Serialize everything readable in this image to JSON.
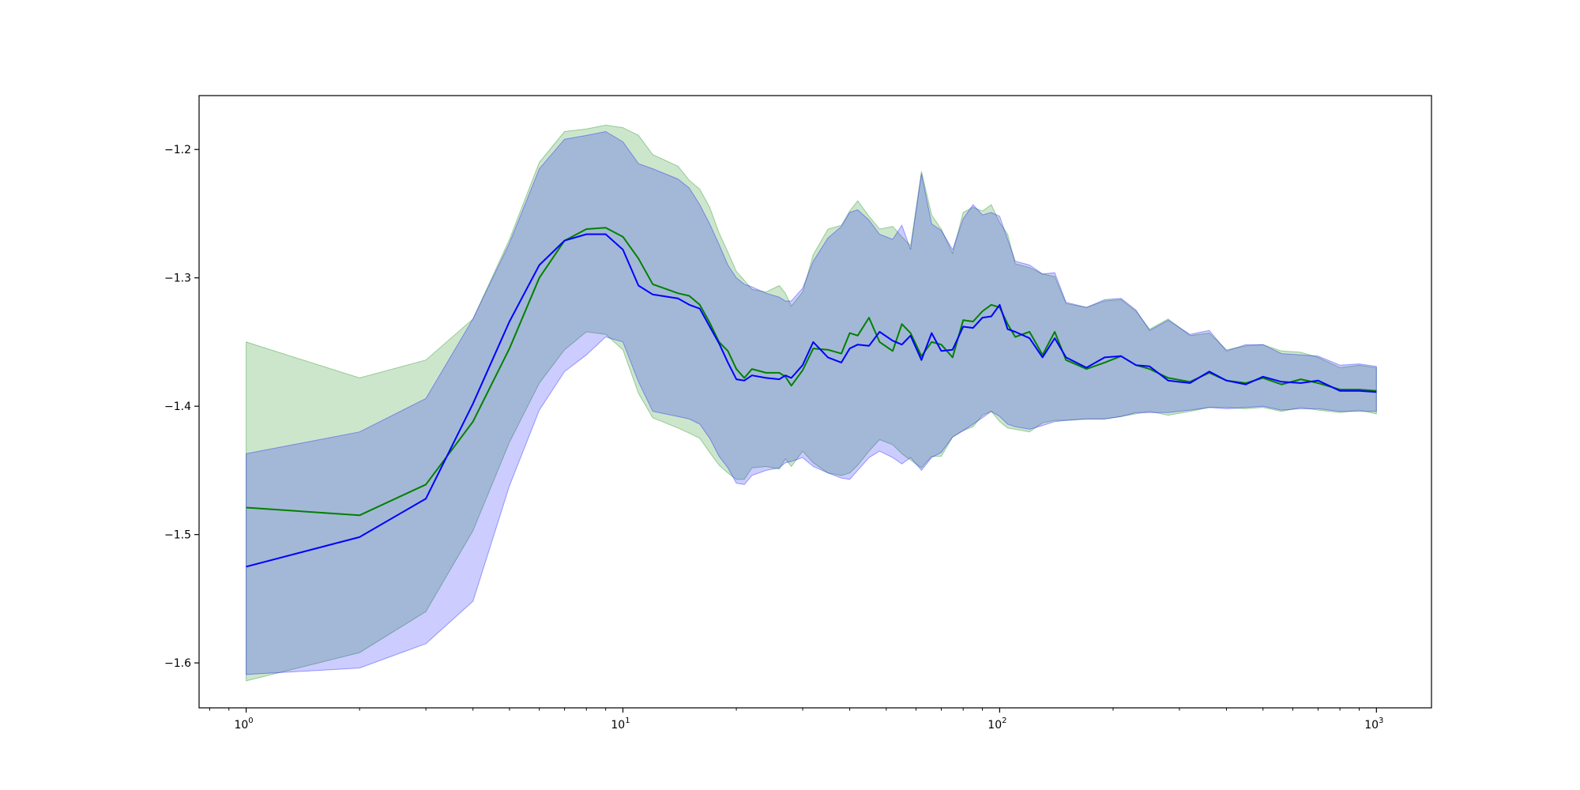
{
  "chart_data": {
    "type": "line",
    "title": "",
    "xlabel": "",
    "ylabel": "",
    "xscale": "log",
    "xlim": [
      0.75,
      1400
    ],
    "ylim": [
      -1.635,
      -1.158
    ],
    "grid": false,
    "x_ticks": [
      {
        "base": "10",
        "exp": "0",
        "value": 1
      },
      {
        "base": "10",
        "exp": "1",
        "value": 10
      },
      {
        "base": "10",
        "exp": "2",
        "value": 100
      },
      {
        "base": "10",
        "exp": "3",
        "value": 1000
      }
    ],
    "y_ticks": [
      {
        "label": "−1.2",
        "value": -1.2
      },
      {
        "label": "−1.3",
        "value": -1.3
      },
      {
        "label": "−1.4",
        "value": -1.4
      },
      {
        "label": "−1.5",
        "value": -1.5
      },
      {
        "label": "−1.6",
        "value": -1.6
      }
    ],
    "series": [
      {
        "color": "#008000",
        "band_color": "#008000",
        "band_opacity": 0.2,
        "x": [
          1,
          2,
          3,
          4,
          5,
          6,
          7,
          8,
          9,
          10,
          11,
          12,
          14,
          15,
          16,
          17,
          18,
          19,
          20,
          21,
          22,
          24,
          26,
          27,
          28,
          30,
          32,
          35,
          38,
          40,
          42,
          45,
          48,
          52,
          55,
          58,
          62,
          66,
          70,
          75,
          80,
          85,
          90,
          95,
          100,
          105,
          110,
          120,
          130,
          140,
          150,
          170,
          190,
          210,
          230,
          250,
          280,
          320,
          360,
          400,
          450,
          500,
          560,
          630,
          700,
          800,
          900,
          1000
        ],
        "mean": [
          -1.479,
          -1.485,
          -1.461,
          -1.412,
          -1.355,
          -1.3,
          -1.271,
          -1.262,
          -1.261,
          -1.268,
          -1.285,
          -1.305,
          -1.312,
          -1.314,
          -1.321,
          -1.335,
          -1.35,
          -1.357,
          -1.371,
          -1.378,
          -1.371,
          -1.374,
          -1.374,
          -1.377,
          -1.384,
          -1.372,
          -1.355,
          -1.356,
          -1.359,
          -1.343,
          -1.345,
          -1.331,
          -1.35,
          -1.357,
          -1.336,
          -1.343,
          -1.361,
          -1.35,
          -1.352,
          -1.362,
          -1.333,
          -1.334,
          -1.326,
          -1.321,
          -1.323,
          -1.336,
          -1.346,
          -1.342,
          -1.36,
          -1.342,
          -1.364,
          -1.371,
          -1.366,
          -1.361,
          -1.368,
          -1.371,
          -1.378,
          -1.381,
          -1.374,
          -1.38,
          -1.382,
          -1.378,
          -1.383,
          -1.379,
          -1.382,
          -1.387,
          -1.387,
          -1.388
        ],
        "upper": [
          -1.35,
          -1.378,
          -1.364,
          -1.332,
          -1.27,
          -1.21,
          -1.186,
          -1.184,
          -1.181,
          -1.183,
          -1.189,
          -1.204,
          -1.213,
          -1.224,
          -1.231,
          -1.245,
          -1.265,
          -1.28,
          -1.295,
          -1.302,
          -1.309,
          -1.311,
          -1.306,
          -1.312,
          -1.322,
          -1.311,
          -1.282,
          -1.262,
          -1.259,
          -1.248,
          -1.24,
          -1.252,
          -1.262,
          -1.26,
          -1.268,
          -1.275,
          -1.217,
          -1.251,
          -1.262,
          -1.281,
          -1.249,
          -1.245,
          -1.248,
          -1.243,
          -1.257,
          -1.266,
          -1.289,
          -1.292,
          -1.297,
          -1.299,
          -1.32,
          -1.323,
          -1.318,
          -1.317,
          -1.326,
          -1.34,
          -1.332,
          -1.345,
          -1.343,
          -1.356,
          -1.353,
          -1.352,
          -1.357,
          -1.358,
          -1.362,
          -1.37,
          -1.368,
          -1.37
        ],
        "lower": [
          -1.614,
          -1.592,
          -1.56,
          -1.497,
          -1.428,
          -1.382,
          -1.356,
          -1.342,
          -1.344,
          -1.356,
          -1.39,
          -1.409,
          -1.417,
          -1.421,
          -1.425,
          -1.436,
          -1.446,
          -1.452,
          -1.457,
          -1.457,
          -1.448,
          -1.447,
          -1.449,
          -1.441,
          -1.447,
          -1.435,
          -1.444,
          -1.452,
          -1.454,
          -1.452,
          -1.446,
          -1.435,
          -1.426,
          -1.43,
          -1.437,
          -1.442,
          -1.448,
          -1.439,
          -1.439,
          -1.424,
          -1.419,
          -1.416,
          -1.407,
          -1.404,
          -1.412,
          -1.417,
          -1.418,
          -1.42,
          -1.413,
          -1.411,
          -1.411,
          -1.41,
          -1.41,
          -1.408,
          -1.406,
          -1.404,
          -1.407,
          -1.404,
          -1.401,
          -1.401,
          -1.402,
          -1.401,
          -1.404,
          -1.401,
          -1.403,
          -1.405,
          -1.403,
          -1.406
        ]
      },
      {
        "color": "#0000ff",
        "band_color": "#0000ff",
        "band_opacity": 0.2,
        "x": [
          1,
          2,
          3,
          4,
          5,
          6,
          7,
          8,
          9,
          10,
          11,
          12,
          14,
          15,
          16,
          17,
          18,
          19,
          20,
          21,
          22,
          24,
          26,
          27,
          28,
          30,
          32,
          35,
          38,
          40,
          42,
          45,
          48,
          52,
          55,
          58,
          62,
          66,
          70,
          75,
          80,
          85,
          90,
          95,
          100,
          105,
          110,
          120,
          130,
          140,
          150,
          170,
          190,
          210,
          230,
          250,
          280,
          320,
          360,
          400,
          450,
          500,
          560,
          630,
          700,
          800,
          900,
          1000
        ],
        "mean": [
          -1.525,
          -1.502,
          -1.472,
          -1.398,
          -1.334,
          -1.29,
          -1.271,
          -1.266,
          -1.266,
          -1.278,
          -1.306,
          -1.313,
          -1.316,
          -1.321,
          -1.324,
          -1.338,
          -1.351,
          -1.366,
          -1.379,
          -1.38,
          -1.376,
          -1.378,
          -1.379,
          -1.376,
          -1.378,
          -1.368,
          -1.35,
          -1.362,
          -1.366,
          -1.355,
          -1.352,
          -1.353,
          -1.342,
          -1.349,
          -1.352,
          -1.345,
          -1.364,
          -1.343,
          -1.357,
          -1.356,
          -1.338,
          -1.339,
          -1.331,
          -1.33,
          -1.321,
          -1.34,
          -1.342,
          -1.347,
          -1.362,
          -1.347,
          -1.362,
          -1.37,
          -1.362,
          -1.361,
          -1.368,
          -1.369,
          -1.38,
          -1.382,
          -1.373,
          -1.38,
          -1.383,
          -1.377,
          -1.381,
          -1.382,
          -1.38,
          -1.388,
          -1.388,
          -1.389
        ],
        "upper": [
          -1.437,
          -1.42,
          -1.394,
          -1.332,
          -1.273,
          -1.215,
          -1.192,
          -1.189,
          -1.186,
          -1.194,
          -1.211,
          -1.215,
          -1.223,
          -1.23,
          -1.243,
          -1.258,
          -1.274,
          -1.29,
          -1.3,
          -1.305,
          -1.307,
          -1.312,
          -1.315,
          -1.318,
          -1.318,
          -1.308,
          -1.287,
          -1.269,
          -1.26,
          -1.249,
          -1.247,
          -1.255,
          -1.266,
          -1.27,
          -1.259,
          -1.278,
          -1.219,
          -1.258,
          -1.263,
          -1.278,
          -1.254,
          -1.243,
          -1.251,
          -1.249,
          -1.252,
          -1.27,
          -1.287,
          -1.29,
          -1.297,
          -1.296,
          -1.319,
          -1.323,
          -1.317,
          -1.316,
          -1.325,
          -1.341,
          -1.333,
          -1.344,
          -1.341,
          -1.357,
          -1.352,
          -1.352,
          -1.359,
          -1.36,
          -1.361,
          -1.368,
          -1.367,
          -1.369
        ],
        "lower": [
          -1.609,
          -1.604,
          -1.585,
          -1.552,
          -1.462,
          -1.403,
          -1.373,
          -1.36,
          -1.346,
          -1.35,
          -1.381,
          -1.404,
          -1.408,
          -1.41,
          -1.414,
          -1.425,
          -1.439,
          -1.448,
          -1.46,
          -1.461,
          -1.454,
          -1.45,
          -1.448,
          -1.444,
          -1.443,
          -1.44,
          -1.447,
          -1.452,
          -1.456,
          -1.457,
          -1.45,
          -1.44,
          -1.435,
          -1.44,
          -1.445,
          -1.44,
          -1.45,
          -1.44,
          -1.436,
          -1.424,
          -1.419,
          -1.414,
          -1.409,
          -1.404,
          -1.408,
          -1.414,
          -1.416,
          -1.418,
          -1.415,
          -1.412,
          -1.411,
          -1.41,
          -1.41,
          -1.408,
          -1.405,
          -1.405,
          -1.405,
          -1.403,
          -1.401,
          -1.402,
          -1.401,
          -1.4,
          -1.403,
          -1.402,
          -1.402,
          -1.404,
          -1.404,
          -1.404
        ]
      }
    ]
  }
}
